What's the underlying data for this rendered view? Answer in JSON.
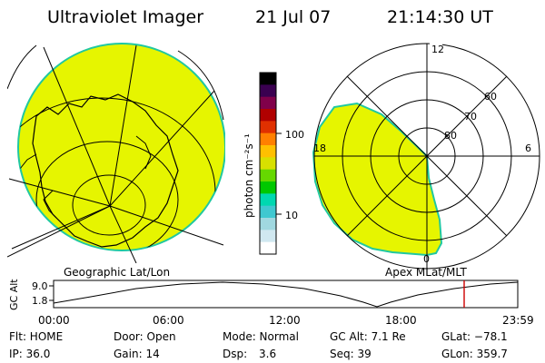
{
  "header": {
    "title": "Ultraviolet Imager",
    "date": "21 Jul 07",
    "time": "21:14:30 UT"
  },
  "colorbar": {
    "unit_label": "photon cm⁻²s⁻¹",
    "tick_100": "100",
    "tick_10": "10",
    "colors": [
      "#000000",
      "#3a0050",
      "#80004a",
      "#b00000",
      "#e03000",
      "#ff8000",
      "#ffc000",
      "#d8e000",
      "#66d800",
      "#00c800",
      "#00d8b0",
      "#40c8d0",
      "#a0d8e0",
      "#d0e8f0",
      "#ffffff"
    ]
  },
  "left_map": {
    "caption": "Geographic Lat/Lon",
    "fill_color": "#e6f500",
    "edge_color": "#20c8a0"
  },
  "right_map": {
    "caption": "Apex MLat/MLT",
    "mlt_12": "12",
    "mlt_18": "18",
    "mlt_6": "6",
    "mlt_0": "0",
    "lat_80": "80",
    "lat_70": "70",
    "lat_60": "60"
  },
  "altitude_plot": {
    "ylabel": "GC Alt",
    "tick_top": "9.0",
    "tick_bottom": "1.8",
    "x_ticks": [
      "00:00",
      "06:00",
      "12:00",
      "18:00",
      "23:59"
    ],
    "marker_color": "#cc0000"
  },
  "status": {
    "flt": "Flt: HOME",
    "ip": "IP: 36.0",
    "door": "Door: Open",
    "gain": "Gain: 14",
    "mode": "Mode: Normal",
    "dsp_label": "Dsp:",
    "dsp_value": "3.6",
    "gc_alt": "GC Alt: 7.1 Re",
    "seq": "Seq: 39",
    "glat": "GLat: −78.1",
    "glon": "GLon: 359.7"
  }
}
